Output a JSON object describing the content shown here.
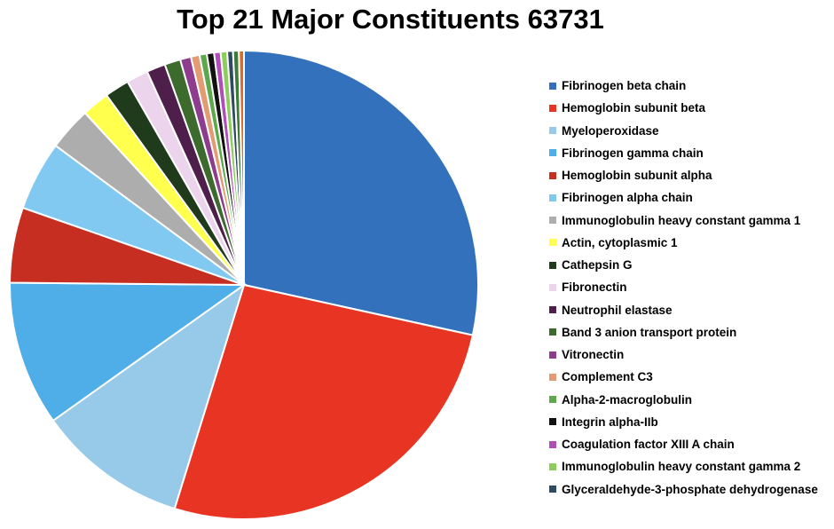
{
  "chart_data": {
    "type": "pie",
    "title": "Top 21 Major Constituents 63731",
    "legend_position": "right",
    "slices": [
      {
        "label": "Fibrinogen beta chain",
        "value": 28.5,
        "color": "#3371BC"
      },
      {
        "label": "Hemoglobin subunit beta",
        "value": 26.4,
        "color": "#E83422"
      },
      {
        "label": "Myeloperoxidase",
        "value": 10.4,
        "color": "#97C9E8"
      },
      {
        "label": "Fibrinogen gamma chain",
        "value": 10.0,
        "color": "#4FAEE8"
      },
      {
        "label": "Hemoglobin subunit alpha",
        "value": 5.2,
        "color": "#C52E20"
      },
      {
        "label": "Fibrinogen alpha chain",
        "value": 4.8,
        "color": "#81C9F0"
      },
      {
        "label": "Immunoglobulin heavy constant gamma 1",
        "value": 3.0,
        "color": "#ADADAD"
      },
      {
        "label": "Actin, cytoplasmic 1",
        "value": 1.9,
        "color": "#FFFF4D"
      },
      {
        "label": "Cathepsin G",
        "value": 1.7,
        "color": "#1F3B1C"
      },
      {
        "label": "Fibronectin",
        "value": 1.5,
        "color": "#ECD5EC"
      },
      {
        "label": "Neutrophil elastase",
        "value": 1.3,
        "color": "#4F1F4C"
      },
      {
        "label": "Band 3 anion transport protein",
        "value": 1.1,
        "color": "#3D6B2E"
      },
      {
        "label": "Vitronectin",
        "value": 0.75,
        "color": "#8E3C8E"
      },
      {
        "label": "Complement C3",
        "value": 0.6,
        "color": "#E39B73"
      },
      {
        "label": "Alpha-2-macroglobulin",
        "value": 0.5,
        "color": "#5DA84C"
      },
      {
        "label": "Integrin alpha-IIb",
        "value": 0.5,
        "color": "#111111"
      },
      {
        "label": "Coagulation factor XIII A chain",
        "value": 0.45,
        "color": "#B04DB8"
      },
      {
        "label": "Immunoglobulin heavy constant gamma 2",
        "value": 0.45,
        "color": "#8DCD5E"
      },
      {
        "label": "Glyceraldehyde-3-phosphate dehydrogenase",
        "value": 0.4,
        "color": "#2E4A5E"
      },
      {
        "value": 0.4,
        "color": "#3D7A3D"
      },
      {
        "value": 0.35,
        "color": "#D96C2A"
      }
    ]
  }
}
